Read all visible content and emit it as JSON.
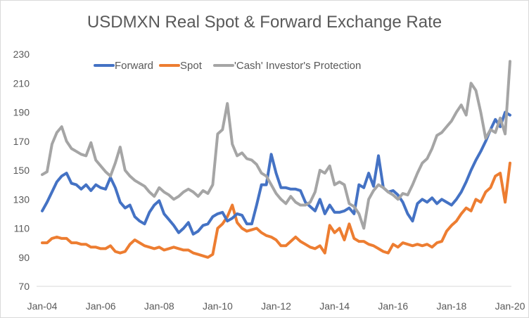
{
  "chart_data": {
    "type": "line",
    "title": "USDMXN Real Spot & Forward Exchange Rate",
    "xlabel": "",
    "ylabel": "",
    "ylim": [
      70,
      230
    ],
    "yticks": [
      70,
      90,
      110,
      130,
      150,
      170,
      190,
      210,
      230
    ],
    "xticks": [
      "Jan-04",
      "Jan-06",
      "Jan-08",
      "Jan-10",
      "Jan-12",
      "Jan-14",
      "Jan-16",
      "Jan-18",
      "Jan-20"
    ],
    "x_start": "Jan-04",
    "x_end": "Jan-20",
    "x_step_months": 2,
    "grid": false,
    "legend_position": "top",
    "series": [
      {
        "name": "Forward",
        "color": "#4472C4",
        "values": [
          122,
          128,
          135,
          142,
          146,
          148,
          141,
          140,
          137,
          140,
          136,
          140,
          138,
          137,
          145,
          138,
          128,
          124,
          126,
          118,
          115,
          113,
          121,
          126,
          129,
          120,
          116,
          112,
          107,
          110,
          114,
          106,
          108,
          112,
          113,
          118,
          120,
          121,
          115,
          117,
          120,
          119,
          113,
          113,
          126,
          140,
          140,
          161,
          148,
          138,
          138,
          137,
          137,
          136,
          128,
          125,
          122,
          130,
          120,
          126,
          121,
          121,
          122,
          124,
          120,
          140,
          138,
          148,
          139,
          160,
          138,
          135,
          136,
          133,
          128,
          120,
          115,
          127,
          130,
          128,
          131,
          127,
          130,
          128,
          126,
          130,
          135,
          142,
          150,
          157,
          163,
          170,
          178,
          185,
          180,
          190,
          188
        ]
      },
      {
        "name": "Spot",
        "color": "#ED7D31",
        "values": [
          100,
          100,
          103,
          104,
          103,
          103,
          100,
          100,
          99,
          99,
          97,
          97,
          96,
          96,
          98,
          94,
          93,
          94,
          99,
          102,
          100,
          98,
          97,
          96,
          97,
          95,
          96,
          97,
          96,
          95,
          95,
          93,
          92,
          91,
          90,
          92,
          110,
          113,
          118,
          126,
          114,
          110,
          108,
          109,
          110,
          107,
          105,
          104,
          102,
          98,
          98,
          101,
          104,
          101,
          99,
          97,
          96,
          98,
          93,
          112,
          107,
          110,
          102,
          113,
          103,
          101,
          101,
          99,
          98,
          96,
          94,
          93,
          99,
          97,
          100,
          99,
          98,
          99,
          98,
          99,
          97,
          100,
          101,
          108,
          112,
          115,
          120,
          124,
          122,
          130,
          128,
          135,
          138,
          146,
          148,
          128,
          155
        ]
      },
      {
        "name": "'Cash' Investor's Protection",
        "color": "#A5A5A5",
        "values": [
          147,
          149,
          168,
          176,
          180,
          170,
          165,
          163,
          161,
          160,
          169,
          157,
          153,
          149,
          146,
          155,
          166,
          150,
          146,
          143,
          141,
          139,
          135,
          132,
          138,
          135,
          133,
          130,
          132,
          135,
          137,
          135,
          132,
          136,
          134,
          140,
          175,
          178,
          196,
          168,
          160,
          162,
          158,
          157,
          154,
          148,
          146,
          140,
          134,
          130,
          127,
          132,
          128,
          126,
          126,
          128,
          135,
          150,
          148,
          153,
          140,
          142,
          140,
          127,
          125,
          120,
          110,
          130,
          136,
          140,
          138,
          135,
          133,
          130,
          134,
          133,
          140,
          148,
          155,
          158,
          165,
          174,
          176,
          180,
          184,
          190,
          195,
          188,
          210,
          205,
          190,
          172,
          178,
          176,
          186,
          175,
          225
        ]
      }
    ]
  }
}
